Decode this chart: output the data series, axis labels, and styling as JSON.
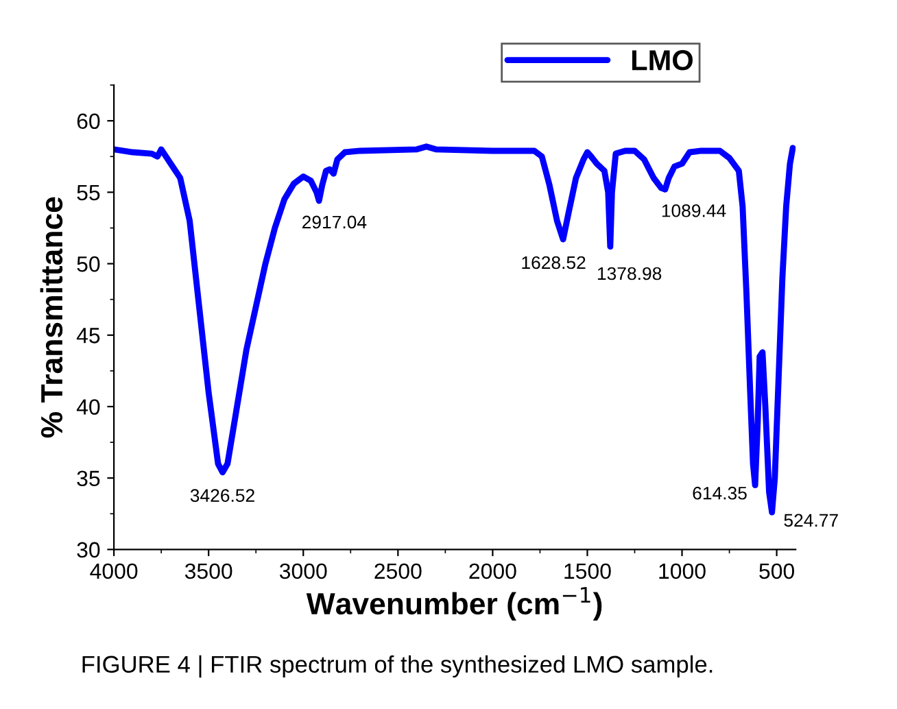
{
  "chart_data": {
    "type": "line",
    "xlabel": "Wavenumber (cm$^{−1}$)",
    "ylabel": "% Transmittance",
    "xlim": [
      4000,
      400
    ],
    "ylim": [
      30,
      62.5
    ],
    "xticks": [
      4000,
      3500,
      3000,
      2500,
      2000,
      1500,
      1000,
      500
    ],
    "yticks": [
      30,
      35,
      40,
      45,
      50,
      55,
      60
    ],
    "legend": "top right",
    "grid": false,
    "series": [
      {
        "name": "LMO",
        "color": "#0000ff",
        "x": [
          4000,
          3900,
          3800,
          3770,
          3750,
          3720,
          3700,
          3650,
          3600,
          3550,
          3500,
          3450,
          3426,
          3400,
          3350,
          3300,
          3250,
          3200,
          3150,
          3100,
          3050,
          3000,
          2960,
          2930,
          2917,
          2900,
          2880,
          2860,
          2840,
          2820,
          2780,
          2700,
          2400,
          2350,
          2300,
          2000,
          1900,
          1780,
          1740,
          1700,
          1660,
          1628,
          1600,
          1560,
          1520,
          1500,
          1480,
          1450,
          1410,
          1390,
          1379,
          1370,
          1350,
          1300,
          1250,
          1200,
          1150,
          1110,
          1089,
          1070,
          1040,
          1000,
          960,
          900,
          800,
          750,
          700,
          680,
          660,
          640,
          625,
          614,
          600,
          590,
          575,
          560,
          540,
          525,
          510,
          490,
          470,
          450,
          430,
          415
        ],
        "values": [
          58.0,
          57.8,
          57.7,
          57.5,
          58.0,
          57.4,
          57.0,
          56.0,
          53.0,
          47.0,
          41.0,
          36.0,
          35.4,
          36.0,
          40.0,
          44.0,
          47.0,
          50.0,
          52.5,
          54.5,
          55.6,
          56.1,
          55.8,
          55.0,
          54.4,
          55.5,
          56.5,
          56.6,
          56.3,
          57.3,
          57.8,
          57.9,
          58.0,
          58.2,
          58.0,
          57.9,
          57.9,
          57.9,
          57.5,
          55.5,
          53.0,
          51.7,
          53.5,
          56.0,
          57.3,
          57.8,
          57.5,
          57.0,
          56.5,
          55.0,
          51.2,
          55.0,
          57.7,
          57.9,
          57.9,
          57.3,
          56.0,
          55.3,
          55.2,
          56.0,
          56.8,
          57.0,
          57.8,
          57.9,
          57.9,
          57.4,
          56.5,
          54.0,
          48.0,
          41.0,
          36.0,
          34.5,
          39.0,
          43.5,
          43.8,
          40.0,
          34.0,
          32.6,
          35.0,
          42.0,
          49.0,
          54.0,
          57.0,
          58.1
        ]
      }
    ],
    "annotations": [
      {
        "text": "3426.52",
        "x": 3426.52,
        "y": 35.4
      },
      {
        "text": "2917.04",
        "x": 2917.04,
        "y": 54.4
      },
      {
        "text": "1628.52",
        "x": 1628.52,
        "y": 51.7
      },
      {
        "text": "1378.98",
        "x": 1378.98,
        "y": 51.2
      },
      {
        "text": "1089.44",
        "x": 1089.44,
        "y": 55.2
      },
      {
        "text": "614.35",
        "x": 614.35,
        "y": 34.5
      },
      {
        "text": "524.77",
        "x": 524.77,
        "y": 32.6
      },
      "FIGURE 4 | FTIR spectrum of the synthesized LMO sample."
    ]
  }
}
